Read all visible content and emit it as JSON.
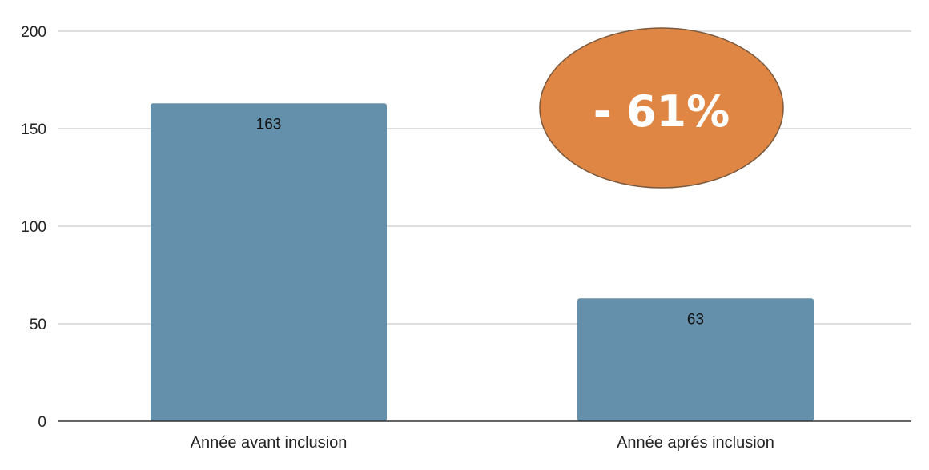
{
  "chart_data": {
    "type": "bar",
    "categories": [
      "Année avant inclusion",
      "Année aprés inclusion"
    ],
    "values": [
      163,
      63
    ],
    "data_labels": [
      "163",
      "63"
    ],
    "ylim": [
      0,
      200
    ],
    "yticks": [
      0,
      50,
      100,
      150,
      200
    ],
    "ytick_labels": [
      "0",
      "50",
      "100",
      "150",
      "200"
    ],
    "grid": true,
    "legend": "none",
    "colors": {
      "bar": "#6590ab",
      "grid": "#d4d4d4",
      "axis": "#333333",
      "badge_fill": "#e08645",
      "badge_stroke": "#7a5a3e"
    },
    "annotation": {
      "text": "- 61%",
      "shape": "ellipse"
    }
  }
}
